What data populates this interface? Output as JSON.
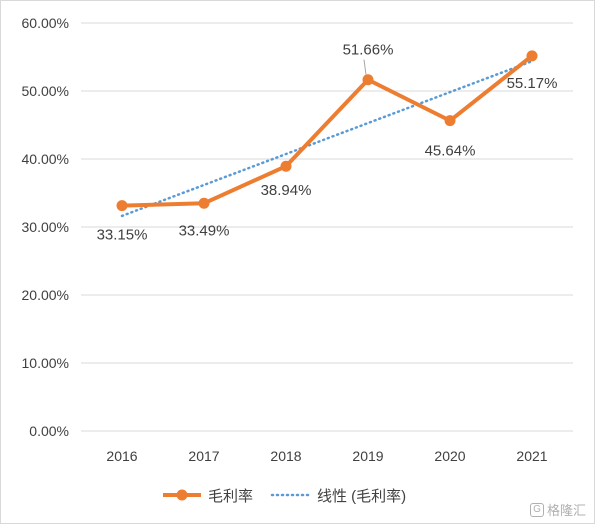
{
  "chart_data": {
    "type": "line",
    "categories": [
      "2016",
      "2017",
      "2018",
      "2019",
      "2020",
      "2021"
    ],
    "series": [
      {
        "name": "毛利率",
        "values": [
          33.15,
          33.49,
          38.94,
          51.66,
          45.64,
          55.17
        ],
        "labels": [
          "33.15%",
          "33.49%",
          "38.94%",
          "51.66%",
          "45.64%",
          "55.17%"
        ],
        "color": "#ED7D31"
      }
    ],
    "trendline": {
      "name": "线性 (毛利率)",
      "type": "linear",
      "color": "#5B9BD5",
      "style": "dotted"
    },
    "ylim": [
      0,
      60
    ],
    "y_ticks": [
      "0.00%",
      "10.00%",
      "20.00%",
      "30.00%",
      "40.00%",
      "50.00%",
      "60.00%"
    ],
    "grid": true,
    "legend_position": "bottom",
    "title": "",
    "xlabel": "",
    "ylabel": ""
  },
  "watermark": {
    "icon": "G",
    "text": "格隆汇"
  }
}
